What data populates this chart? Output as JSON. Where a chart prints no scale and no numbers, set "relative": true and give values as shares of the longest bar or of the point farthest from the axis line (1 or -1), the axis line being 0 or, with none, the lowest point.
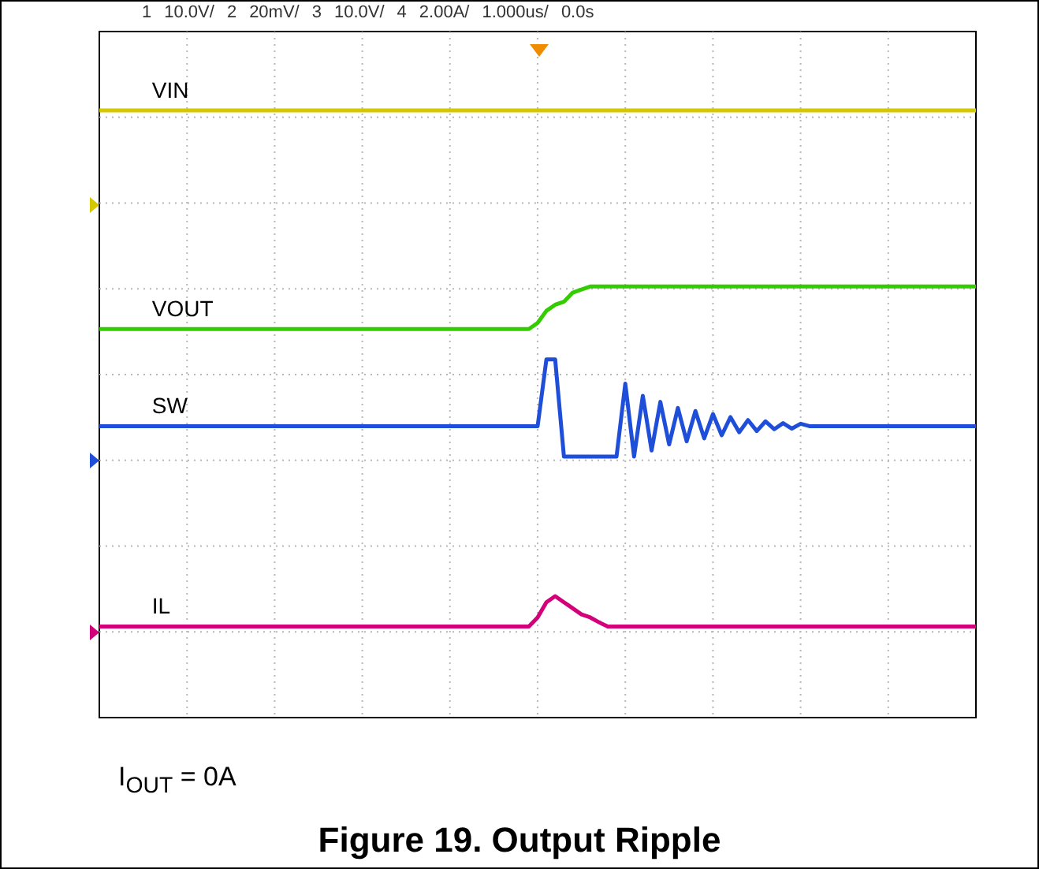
{
  "chart_data": {
    "type": "line",
    "title": "Figure 19. Output Ripple",
    "relative": true,
    "grid": true,
    "legend": false,
    "marker": "none",
    "annotations": [
      "1",
      "10.0V/",
      "2",
      "20mV/",
      "3",
      "10.0V/",
      "4",
      "2.00A/",
      "1.000us/",
      "0.0s",
      "I$_{OUT}$ = 0A"
    ],
    "categories": [
      null,
      null,
      null,
      null,
      null,
      null,
      null,
      null,
      null,
      null,
      null,
      null,
      null,
      null,
      null,
      null,
      null,
      null,
      null,
      null,
      null,
      null,
      null,
      null,
      null,
      null,
      null,
      null,
      null,
      null,
      null,
      null,
      null,
      null,
      null,
      null,
      null,
      null,
      null,
      null,
      null,
      null,
      null,
      null,
      null,
      null,
      null,
      null,
      null,
      null,
      null,
      null,
      null,
      null,
      null,
      null,
      null,
      null,
      null,
      null,
      null,
      null,
      null,
      null,
      null,
      null,
      null,
      null,
      null,
      null,
      null,
      null,
      null,
      null,
      null,
      null,
      null,
      null,
      null,
      null,
      null,
      null,
      null,
      null,
      null,
      null,
      null,
      null,
      null,
      null,
      null,
      null,
      null,
      null,
      null,
      null,
      null,
      null,
      null,
      null,
      null
    ],
    "series": [
      {
        "name": "VIN",
        "color": "#d4c800",
        "values": [
          1,
          1,
          1,
          1,
          1,
          1,
          1,
          1,
          1,
          1,
          1,
          1,
          1,
          1,
          1,
          1,
          1,
          1,
          1,
          1,
          1,
          1,
          1,
          1,
          1,
          1,
          1,
          1,
          1,
          1,
          1,
          1,
          1,
          1,
          1,
          1,
          1,
          1,
          1,
          1,
          1,
          1,
          1,
          1,
          1,
          1,
          1,
          1,
          1,
          1,
          1,
          1,
          1,
          1,
          1,
          1,
          1,
          1,
          1,
          1,
          1,
          1,
          1,
          1,
          1,
          1,
          1,
          1,
          1,
          1,
          1,
          1,
          1,
          1,
          1,
          1,
          1,
          1,
          1,
          1,
          1,
          1,
          1,
          1,
          1,
          1,
          1,
          1,
          1,
          1,
          1,
          1,
          1,
          1,
          1,
          1,
          1,
          1,
          1,
          1,
          1
        ]
      },
      {
        "name": "VOUT",
        "color": "#33cc00",
        "values": [
          0.64,
          0.64,
          0.64,
          0.64,
          0.64,
          0.64,
          0.64,
          0.64,
          0.64,
          0.64,
          0.64,
          0.64,
          0.64,
          0.64,
          0.64,
          0.64,
          0.64,
          0.64,
          0.64,
          0.64,
          0.64,
          0.64,
          0.64,
          0.64,
          0.64,
          0.64,
          0.64,
          0.64,
          0.64,
          0.64,
          0.64,
          0.64,
          0.64,
          0.64,
          0.64,
          0.64,
          0.64,
          0.64,
          0.64,
          0.64,
          0.64,
          0.64,
          0.64,
          0.64,
          0.64,
          0.64,
          0.64,
          0.64,
          0.64,
          0.64,
          0.65,
          0.67,
          0.68,
          0.685,
          0.7,
          0.705,
          0.71,
          0.71,
          0.71,
          0.71,
          0.71,
          0.71,
          0.71,
          0.71,
          0.71,
          0.71,
          0.71,
          0.71,
          0.71,
          0.71,
          0.71,
          0.71,
          0.71,
          0.71,
          0.71,
          0.71,
          0.71,
          0.71,
          0.71,
          0.71,
          0.71,
          0.71,
          0.71,
          0.71,
          0.71,
          0.71,
          0.71,
          0.71,
          0.71,
          0.71,
          0.71,
          0.71,
          0.71,
          0.71,
          0.71,
          0.71,
          0.71,
          0.71,
          0.71,
          0.71,
          0.71
        ]
      },
      {
        "name": "SW",
        "color": "#1f4fd8",
        "values": [
          0.48,
          0.48,
          0.48,
          0.48,
          0.48,
          0.48,
          0.48,
          0.48,
          0.48,
          0.48,
          0.48,
          0.48,
          0.48,
          0.48,
          0.48,
          0.48,
          0.48,
          0.48,
          0.48,
          0.48,
          0.48,
          0.48,
          0.48,
          0.48,
          0.48,
          0.48,
          0.48,
          0.48,
          0.48,
          0.48,
          0.48,
          0.48,
          0.48,
          0.48,
          0.48,
          0.48,
          0.48,
          0.48,
          0.48,
          0.48,
          0.48,
          0.48,
          0.48,
          0.48,
          0.48,
          0.48,
          0.48,
          0.48,
          0.48,
          0.48,
          0.48,
          0.59,
          0.59,
          0.43,
          0.43,
          0.43,
          0.43,
          0.43,
          0.43,
          0.43,
          0.55,
          0.43,
          0.53,
          0.44,
          0.52,
          0.45,
          0.51,
          0.455,
          0.505,
          0.46,
          0.5,
          0.465,
          0.495,
          0.47,
          0.49,
          0.472,
          0.488,
          0.475,
          0.485,
          0.476,
          0.484,
          0.48,
          0.48,
          0.48,
          0.48,
          0.48,
          0.48,
          0.48,
          0.48,
          0.48,
          0.48,
          0.48,
          0.48,
          0.48,
          0.48,
          0.48,
          0.48,
          0.48,
          0.48,
          0.48,
          0.48
        ]
      },
      {
        "name": "IL",
        "color": "#d4007a",
        "values": [
          0.15,
          0.15,
          0.15,
          0.15,
          0.15,
          0.15,
          0.15,
          0.15,
          0.15,
          0.15,
          0.15,
          0.15,
          0.15,
          0.15,
          0.15,
          0.15,
          0.15,
          0.15,
          0.15,
          0.15,
          0.15,
          0.15,
          0.15,
          0.15,
          0.15,
          0.15,
          0.15,
          0.15,
          0.15,
          0.15,
          0.15,
          0.15,
          0.15,
          0.15,
          0.15,
          0.15,
          0.15,
          0.15,
          0.15,
          0.15,
          0.15,
          0.15,
          0.15,
          0.15,
          0.15,
          0.15,
          0.15,
          0.15,
          0.15,
          0.15,
          0.165,
          0.19,
          0.2,
          0.19,
          0.18,
          0.17,
          0.165,
          0.157,
          0.15,
          0.15,
          0.15,
          0.15,
          0.15,
          0.15,
          0.15,
          0.15,
          0.15,
          0.15,
          0.15,
          0.15,
          0.15,
          0.15,
          0.15,
          0.15,
          0.15,
          0.15,
          0.15,
          0.15,
          0.15,
          0.15,
          0.15,
          0.15,
          0.15,
          0.15,
          0.15,
          0.15,
          0.15,
          0.15,
          0.15,
          0.15,
          0.15,
          0.15,
          0.15,
          0.15,
          0.15,
          0.15,
          0.15,
          0.15,
          0.15,
          0.15,
          0.15
        ]
      }
    ]
  }
}
